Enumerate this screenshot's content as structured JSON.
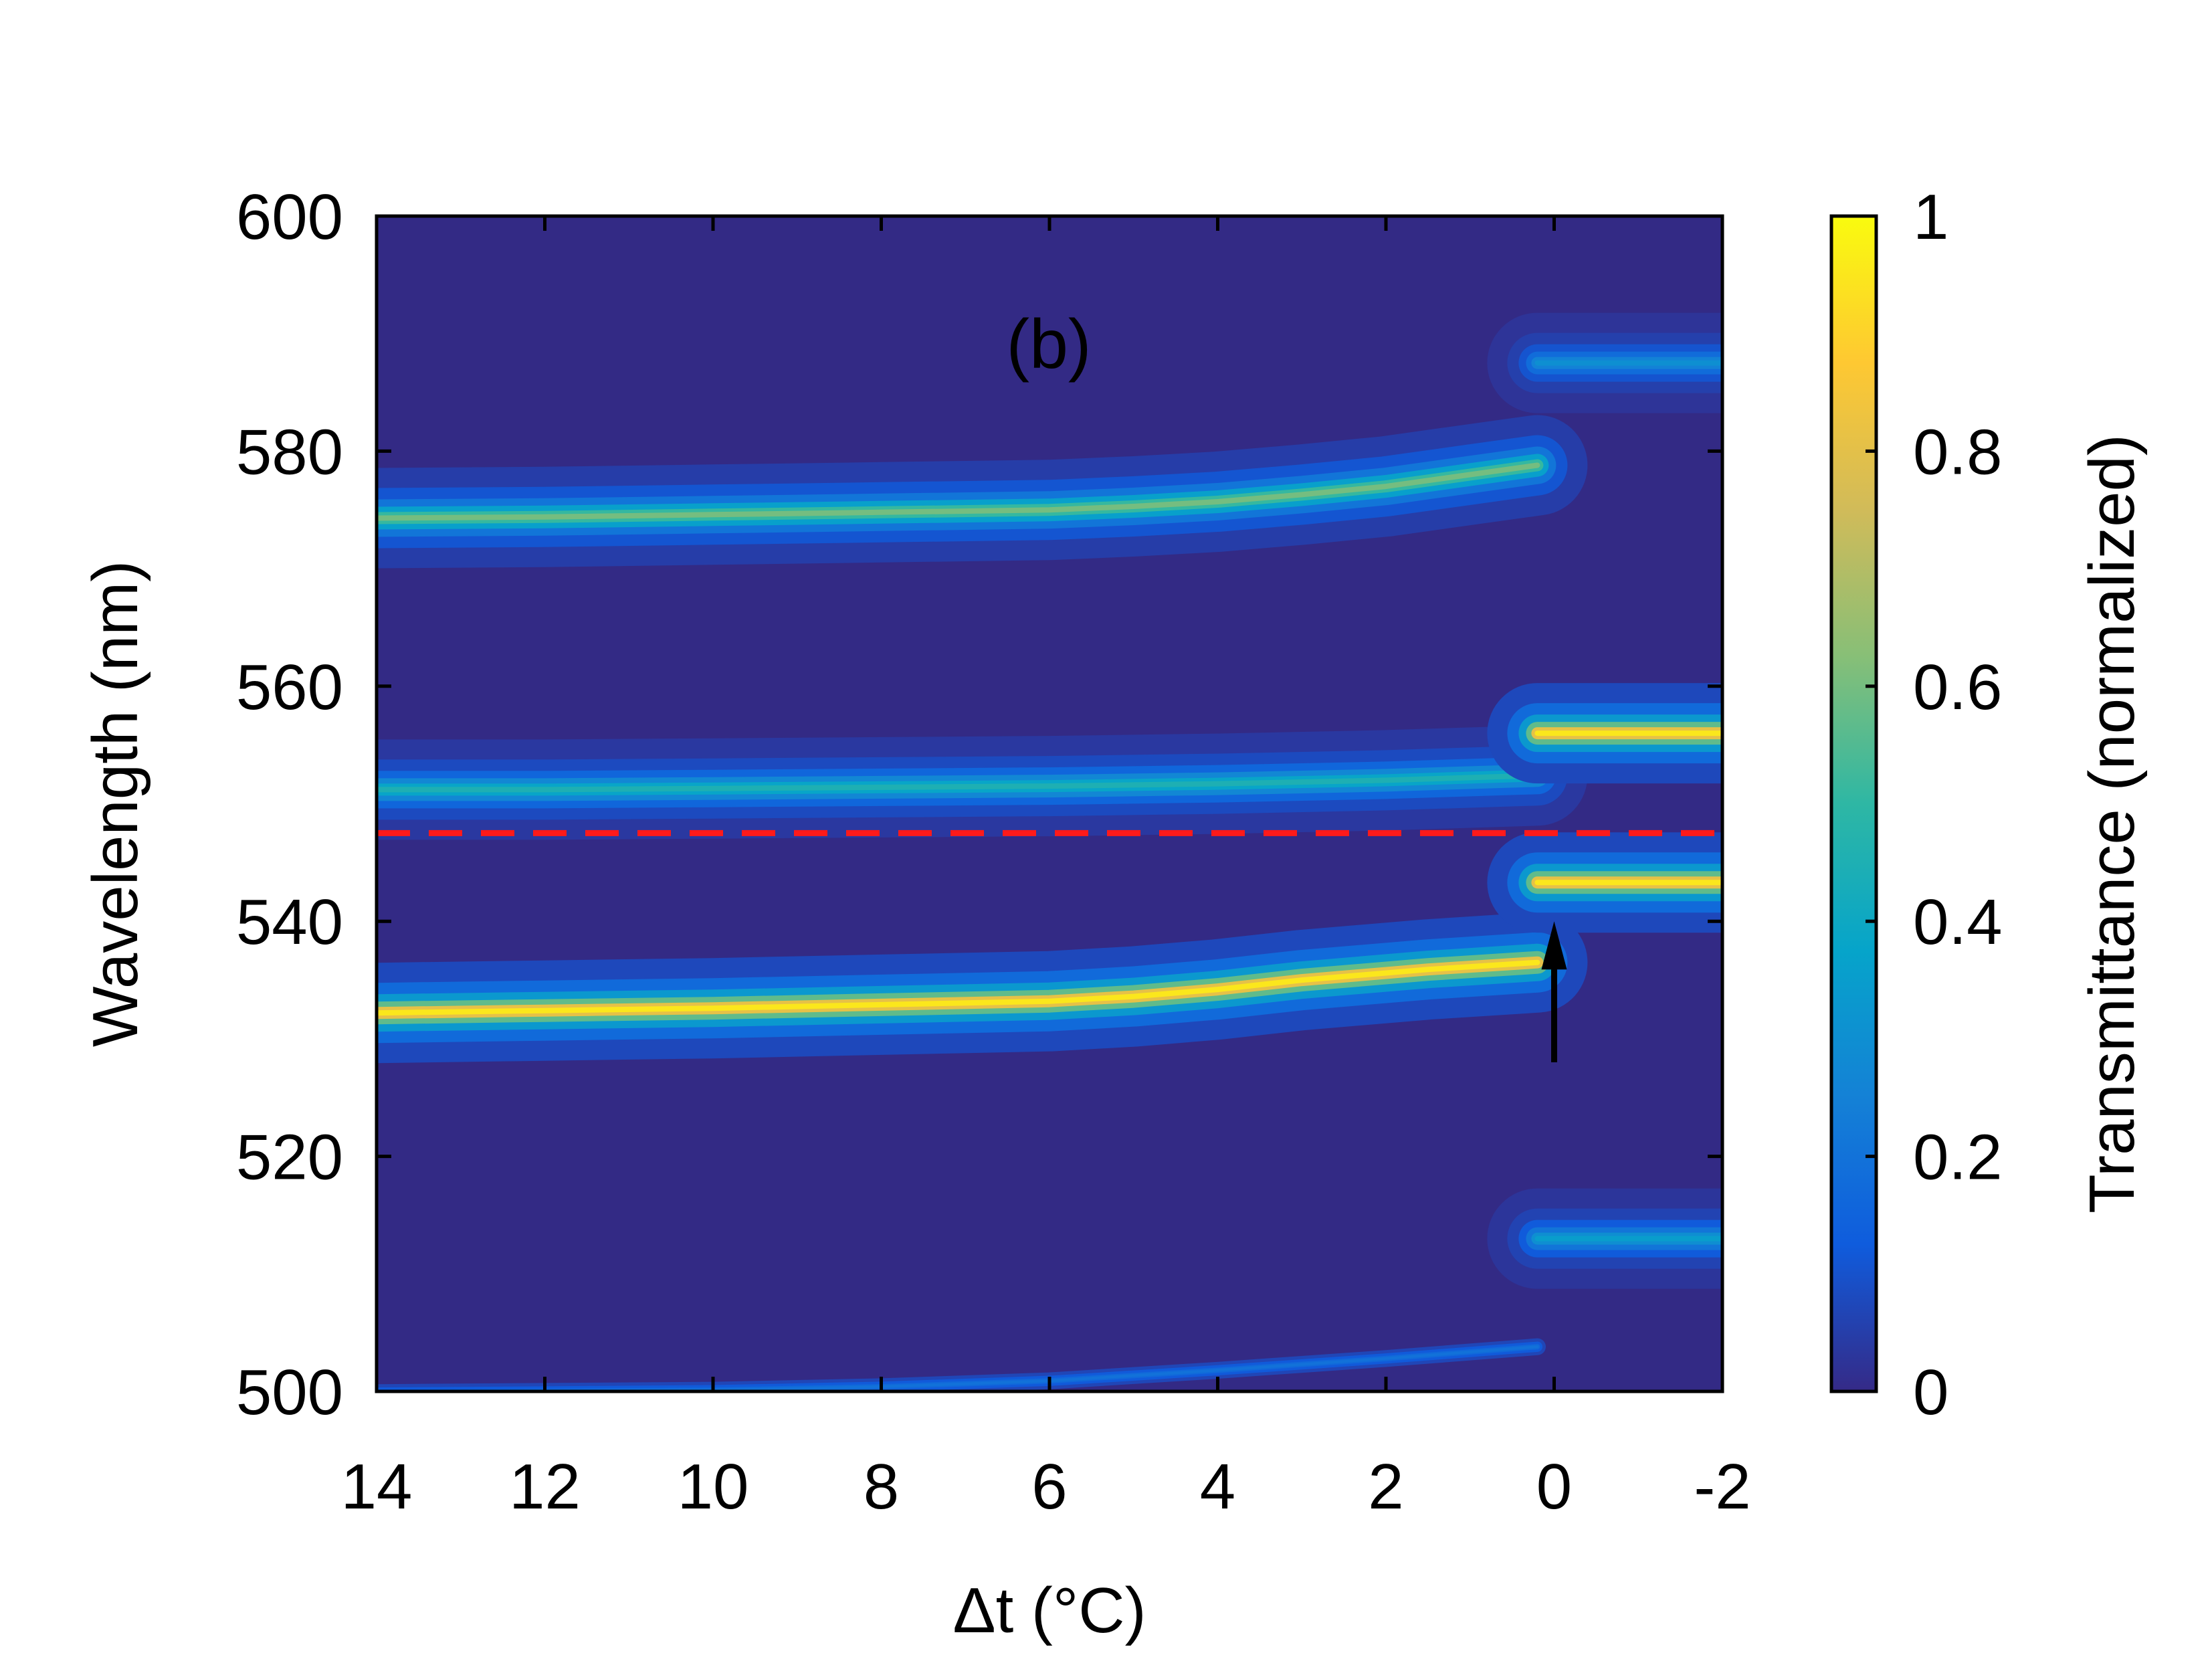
{
  "chart_data": {
    "type": "heatmap",
    "panel_label": "(b)",
    "xlabel": "Δt (°C)",
    "ylabel": "Wavelength (nm)",
    "xlim": [
      14,
      -2
    ],
    "ylim": [
      500,
      600
    ],
    "x_ticks": [
      14,
      12,
      10,
      8,
      6,
      4,
      2,
      0,
      -2
    ],
    "x_tick_labels": [
      "14",
      "12",
      "10",
      "8",
      "6",
      "4",
      "2",
      "0",
      "-2"
    ],
    "y_ticks": [
      500,
      520,
      540,
      560,
      580,
      600
    ],
    "y_tick_labels": [
      "500",
      "520",
      "540",
      "560",
      "580",
      "600"
    ],
    "colorbar": {
      "label": "Transmittance (normalized)",
      "range": [
        0,
        1
      ],
      "ticks": [
        0,
        0.2,
        0.4,
        0.6,
        0.8,
        1
      ],
      "tick_labels": [
        "0",
        "0.2",
        "0.4",
        "0.6",
        "0.8",
        "1"
      ],
      "colormap": [
        "#352a87",
        "#0f5cdd",
        "#1481d6",
        "#06a4ca",
        "#2eb7a4",
        "#87bf77",
        "#d1bb59",
        "#fec832",
        "#f9fb0e"
      ]
    },
    "background_color": "#332a85",
    "reference_line": {
      "y": 547.5,
      "style": "dashed",
      "color": "#ff1a1a"
    },
    "arrow": {
      "x": 0,
      "y_from": 528,
      "y_to": 540,
      "color": "#000000"
    },
    "bands": [
      {
        "region": "x from 14 to 0.2",
        "y": [
          574.3,
          574.4,
          574.6,
          574.8,
          575.0,
          575.3,
          575.7,
          576.3,
          577.0,
          578.0,
          578.8
        ],
        "x": [
          14,
          12,
          10,
          8,
          6,
          5,
          4,
          3,
          2,
          1,
          0.2
        ],
        "peak": 0.6
      },
      {
        "region": "x from 14 to 0.2",
        "y": [
          551.2,
          551.2,
          551.3,
          551.4,
          551.5,
          551.7,
          552.0,
          552.4
        ],
        "x": [
          14,
          12,
          10,
          8,
          6,
          4,
          2,
          0.2
        ],
        "peak": 0.45
      },
      {
        "region": "x from 14 to 0.2",
        "y": [
          532.2,
          532.4,
          532.6,
          532.9,
          533.2,
          533.6,
          534.2,
          535.0,
          535.9,
          536.5
        ],
        "x": [
          14,
          12,
          10,
          8,
          6,
          5,
          4,
          3,
          1.5,
          0.2
        ],
        "peak": 0.95
      },
      {
        "region": "x from 14 to 0.2",
        "y": [
          499.9,
          500.0,
          500.1,
          500.4,
          500.9,
          501.8,
          502.8,
          503.8
        ],
        "x": [
          14,
          12,
          10,
          8,
          6,
          4,
          2,
          0.2
        ],
        "peak": 0.2
      },
      {
        "region": "x from 0.2 to -2",
        "y": [
          587.5
        ],
        "peak": 0.3
      },
      {
        "region": "x from 0.2 to -2",
        "y": [
          556.0
        ],
        "peak": 0.95
      },
      {
        "region": "x from 0.2 to -2",
        "y": [
          543.3
        ],
        "peak": 0.95
      },
      {
        "region": "x from 0.2 to -2",
        "y": [
          513.0
        ],
        "peak": 0.35
      }
    ]
  }
}
